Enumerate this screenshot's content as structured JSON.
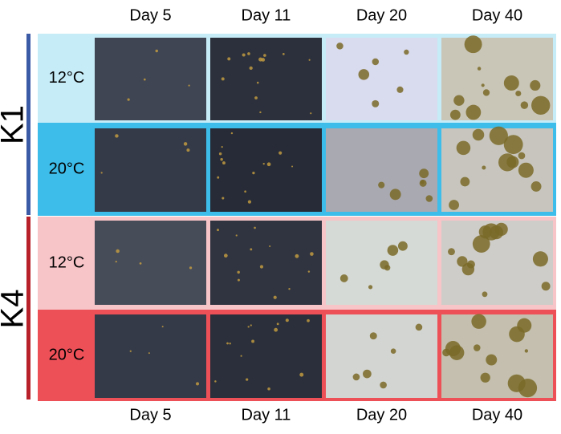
{
  "columns_top": [
    "Day 5",
    "Day 11",
    "Day 20",
    "Day 40"
  ],
  "columns_bottom": [
    "Day 5",
    "Day 11",
    "Day 20",
    "Day 40"
  ],
  "groups": [
    {
      "label": "K1",
      "rows": [
        {
          "label": "12°C"
        },
        {
          "label": "20°C"
        }
      ]
    },
    {
      "label": "K4",
      "rows": [
        {
          "label": "12°C"
        },
        {
          "label": "20°C"
        }
      ]
    }
  ]
}
